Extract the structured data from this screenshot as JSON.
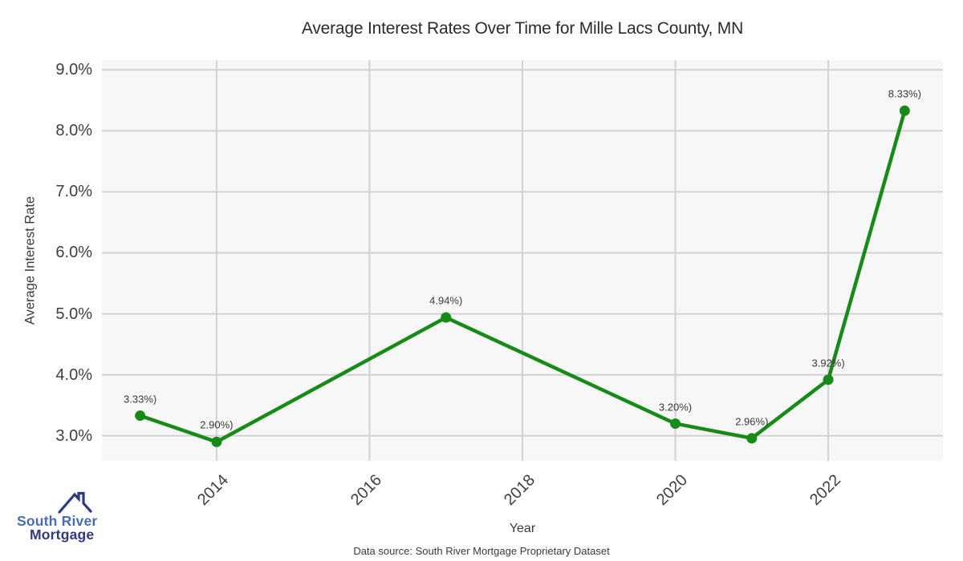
{
  "chart_data": {
    "type": "line",
    "title": "Average Interest Rates Over Time for Mille Lacs County, MN",
    "xlabel": "Year",
    "ylabel": "Average Interest Rate",
    "x": [
      2013,
      2014,
      2017,
      2020,
      2021,
      2022,
      2023
    ],
    "values": [
      3.33,
      2.9,
      4.94,
      3.2,
      2.96,
      3.92,
      8.33
    ],
    "point_labels": [
      "3.33%)",
      "2.90%)",
      "4.94%)",
      "3.20%)",
      "2.96%)",
      "3.92%)",
      "8.33%)"
    ],
    "xticks": [
      2014,
      2016,
      2018,
      2020,
      2022
    ],
    "xtick_labels": [
      "2014",
      "2016",
      "2018",
      "2020",
      "2022"
    ],
    "yticks": [
      3.0,
      4.0,
      5.0,
      6.0,
      7.0,
      8.0,
      9.0
    ],
    "ytick_labels": [
      "3.0%",
      "4.0%",
      "5.0%",
      "6.0%",
      "7.0%",
      "8.0%",
      "9.0%"
    ],
    "xlim": [
      2012.5,
      2023.5
    ],
    "ylim": [
      2.59,
      9.16
    ],
    "grid": true,
    "legend_position": "none",
    "line_color": "#178a17",
    "marker_color": "#178a17",
    "plot_bg_color": "#f7f7f7",
    "grid_color": "#d2d2d2"
  },
  "footer": {
    "data_source": "Data source: South River Mortgage Proprietary Dataset"
  },
  "logo": {
    "line1": "South River",
    "line2": "Mortgage",
    "icon": "house-roof-icon",
    "color_primary": "#4a6cb3",
    "color_secondary": "#2d3a7e"
  }
}
